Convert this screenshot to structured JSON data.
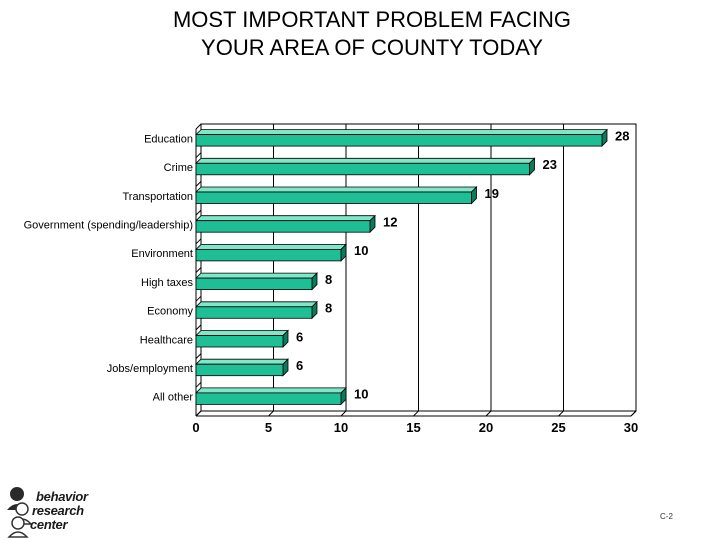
{
  "title_lines": [
    "MOST IMPORTANT PROBLEM FACING",
    "YOUR AREA OF COUNTY TODAY"
  ],
  "page_number": "C-2",
  "logo": {
    "lines": [
      "behavior",
      "research",
      "center"
    ]
  },
  "colors": {
    "bar": "#1fbf96",
    "bar_top": "#7fe6c8",
    "bar_side": "#0c7a5c",
    "grid": "#000000"
  },
  "chart_data": {
    "type": "bar",
    "orientation": "horizontal",
    "title": "MOST IMPORTANT PROBLEM FACING YOUR AREA OF COUNTY TODAY",
    "categories": [
      "Education",
      "Crime",
      "Transportation",
      "Government (spending/leadership)",
      "Environment",
      "High taxes",
      "Economy",
      "Healthcare",
      "Jobs/employment",
      "All other"
    ],
    "values": [
      28,
      23,
      19,
      12,
      10,
      8,
      8,
      6,
      6,
      10
    ],
    "xlim": [
      0,
      30
    ],
    "xticks": [
      0,
      5,
      10,
      15,
      20,
      25,
      30
    ],
    "grid": true,
    "data_labels": true,
    "xlabel": "",
    "ylabel": ""
  }
}
